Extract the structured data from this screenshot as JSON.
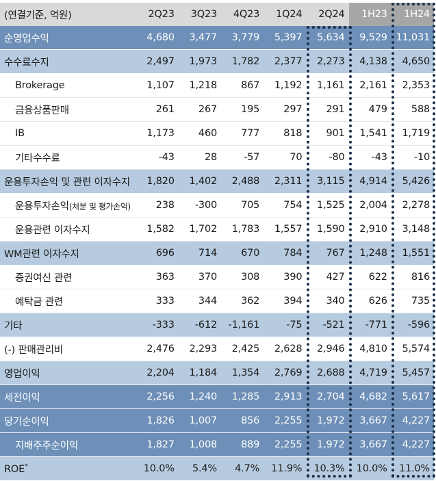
{
  "header": {
    "label": "(연결기준, 억원)",
    "columns": [
      "2Q23",
      "3Q23",
      "4Q23",
      "1Q24",
      "2Q24",
      "1H23",
      "1H24"
    ]
  },
  "rows": [
    {
      "label": "순영업수익",
      "style": "dark",
      "values": [
        "4,680",
        "3,477",
        "3,779",
        "5,397",
        "5,634",
        "9,529",
        "11,031"
      ]
    },
    {
      "label": "수수료수지",
      "style": "light",
      "values": [
        "2,497",
        "1,973",
        "1,782",
        "2,377",
        "2,273",
        "4,138",
        "4,650"
      ]
    },
    {
      "label": "Brokerage",
      "style": "white",
      "indent": true,
      "values": [
        "1,107",
        "1,218",
        "867",
        "1,192",
        "1,161",
        "2,161",
        "2,353"
      ]
    },
    {
      "label": "금융상품판매",
      "style": "white",
      "indent": true,
      "values": [
        "261",
        "267",
        "195",
        "297",
        "291",
        "479",
        "588"
      ]
    },
    {
      "label": "IB",
      "style": "white",
      "indent": true,
      "values": [
        "1,173",
        "460",
        "777",
        "818",
        "901",
        "1,541",
        "1,719"
      ]
    },
    {
      "label": "기타수수료",
      "style": "white",
      "indent": true,
      "values": [
        "-43",
        "28",
        "-57",
        "70",
        "-80",
        "-43",
        "-10"
      ]
    },
    {
      "label": "운용투자손익 및 관련 이자수지",
      "style": "light",
      "values": [
        "1,820",
        "1,402",
        "2,488",
        "2,311",
        "3,115",
        "4,914",
        "5,426"
      ]
    },
    {
      "label": "운용투자손익",
      "label_small": "(처분 및 평가손익)",
      "style": "white",
      "indent": true,
      "values": [
        "238",
        "-300",
        "705",
        "754",
        "1,525",
        "2,004",
        "2,278"
      ]
    },
    {
      "label": "운용관련 이자수지",
      "style": "white",
      "indent": true,
      "values": [
        "1,582",
        "1,702",
        "1,783",
        "1,557",
        "1,590",
        "2,910",
        "3,148"
      ]
    },
    {
      "label": "WM관련 이자수지",
      "style": "light",
      "values": [
        "696",
        "714",
        "670",
        "784",
        "767",
        "1,248",
        "1,551"
      ]
    },
    {
      "label": "증권여신 관련",
      "style": "white",
      "indent": true,
      "values": [
        "363",
        "370",
        "308",
        "390",
        "427",
        "622",
        "816"
      ]
    },
    {
      "label": "예탁금 관련",
      "style": "white",
      "indent": true,
      "values": [
        "333",
        "344",
        "362",
        "394",
        "340",
        "626",
        "735"
      ]
    },
    {
      "label": "기타",
      "style": "light",
      "values": [
        "-333",
        "-612",
        "-1,161",
        "-75",
        "-521",
        "-771",
        "-596"
      ]
    },
    {
      "label": "(-) 판매관리비",
      "style": "white",
      "values": [
        "2,476",
        "2,293",
        "2,425",
        "2,628",
        "2,946",
        "4,810",
        "5,574"
      ]
    },
    {
      "label": "영업이익",
      "style": "light",
      "values": [
        "2,204",
        "1,184",
        "1,354",
        "2,769",
        "2,688",
        "4,719",
        "5,457"
      ]
    },
    {
      "label": "세전이익",
      "style": "dark",
      "values": [
        "2,256",
        "1,240",
        "1,285",
        "2,913",
        "2,704",
        "4,682",
        "5,617"
      ]
    },
    {
      "label": "당기순이익",
      "style": "dark",
      "values": [
        "1,826",
        "1,007",
        "856",
        "2,255",
        "1,972",
        "3,667",
        "4,227"
      ]
    },
    {
      "label": "지배주주순이익",
      "style": "dark",
      "indent": true,
      "values": [
        "1,827",
        "1,008",
        "889",
        "2,255",
        "1,972",
        "3,667",
        "4,227"
      ]
    },
    {
      "label": "ROE",
      "sup": "*",
      "style": "light",
      "values": [
        "10.0%",
        "5.4%",
        "4.7%",
        "11.9%",
        "10.3%",
        "10.0%",
        "11.0%"
      ]
    }
  ],
  "colors": {
    "header_bg": "#d9d9d9",
    "header_highlight_bg": "#a6a6a6",
    "dark_row": "#6d8fb8",
    "light_row": "#b7cbe0",
    "highlight_border": "#1b2f4a"
  }
}
